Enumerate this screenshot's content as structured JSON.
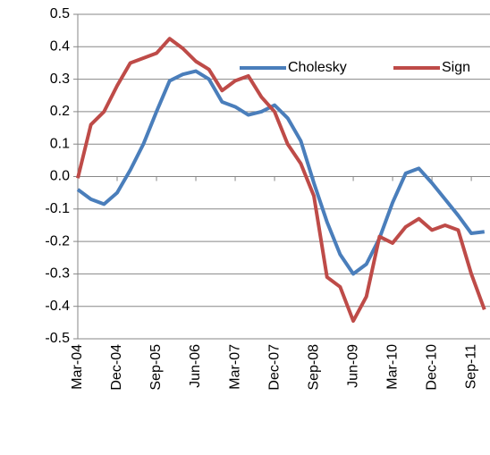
{
  "chart_data": {
    "type": "line",
    "categories": [
      "Mar-04",
      null,
      null,
      "Dec-04",
      null,
      null,
      "Sep-05",
      null,
      null,
      "Jun-06",
      null,
      null,
      "Mar-07",
      null,
      null,
      "Dec-07",
      null,
      null,
      "Sep-08",
      null,
      null,
      "Jun-09",
      null,
      null,
      "Mar-10",
      null,
      null,
      "Dec-10",
      null,
      null,
      "Sep-11",
      null
    ],
    "series": [
      {
        "name": "Cholesky",
        "color": "#4a7ebb",
        "values": [
          -0.04,
          -0.07,
          -0.085,
          -0.05,
          0.02,
          0.1,
          0.2,
          0.295,
          0.315,
          0.325,
          0.3,
          0.23,
          0.215,
          0.19,
          0.2,
          0.22,
          0.18,
          0.11,
          -0.02,
          -0.14,
          -0.24,
          -0.3,
          -0.27,
          -0.19,
          -0.08,
          0.01,
          0.025,
          -0.02,
          -0.07,
          -0.12,
          -0.175,
          -0.17
        ]
      },
      {
        "name": "Sign",
        "color": "#be4b48",
        "values": [
          -0.005,
          0.16,
          0.2,
          0.28,
          0.35,
          0.365,
          0.38,
          0.425,
          0.395,
          0.355,
          0.33,
          0.265,
          0.295,
          0.31,
          0.245,
          0.2,
          0.1,
          0.04,
          -0.06,
          -0.31,
          -0.34,
          -0.445,
          -0.37,
          -0.185,
          -0.205,
          -0.155,
          -0.13,
          -0.165,
          -0.15,
          -0.165,
          -0.3,
          -0.41
        ]
      }
    ],
    "ylim": [
      -0.5,
      0.5
    ],
    "yticks": [
      -0.5,
      -0.4,
      -0.3,
      -0.2,
      -0.1,
      {
        "value": 0,
        "label": "0.0"
      },
      0.1,
      0.2,
      0.3,
      0.4,
      0.5
    ],
    "grid": true,
    "legend": "top-right"
  }
}
